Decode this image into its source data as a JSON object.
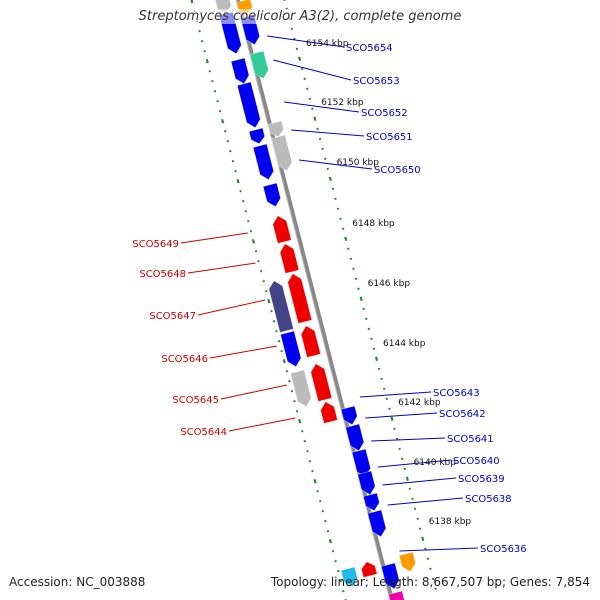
{
  "title": "Streptomyces coelicolor A3(2), complete genome",
  "accession_text": "Accession: NC_003888",
  "summary_text": "Topology: linear; Length: 8,667,507 bp; Genes: 7,854",
  "colors": {
    "forward": "#0000ee",
    "reverse": "#ee0000",
    "other": "#bbbbbb",
    "rna": "#33cc99",
    "dark": "#444488",
    "orange": "#ff9900",
    "cyan": "#22bbee",
    "magenta": "#ee00aa",
    "tick": "#2a8a2a",
    "backbone": "#888888"
  },
  "kbp_labels": [
    "6154 kbp",
    "6152 kbp",
    "6150 kbp",
    "6148 kbp",
    "6146 kbp",
    "6144 kbp",
    "6142 kbp",
    "6140 kbp",
    "6138 kbp"
  ],
  "forward_gene_labels": [
    "SCO5654",
    "SCO5653",
    "SCO5652",
    "SCO5651",
    "SCO5650",
    "SCO5643",
    "SCO5642",
    "SCO5641",
    "SCO5640",
    "SCO5639",
    "SCO5638",
    "SCO5636"
  ],
  "reverse_gene_labels": [
    "SCO5649",
    "SCO5648",
    "SCO5647",
    "SCO5646",
    "SCO5645",
    "SCO5644"
  ]
}
